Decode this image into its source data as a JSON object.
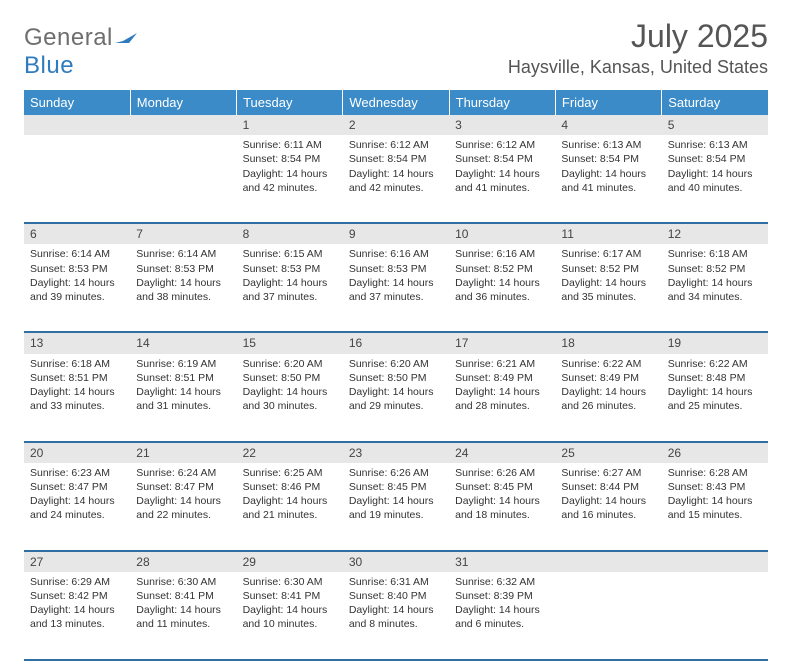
{
  "brand": {
    "general": "General",
    "blue": "Blue"
  },
  "title": "July 2025",
  "location": "Haysville, Kansas, United States",
  "header_bg": "#3b8bc9",
  "border_color": "#2f6fa3",
  "daynum_bg": "#e7e7e7",
  "logo_flag_color": "#2f7bbf",
  "weekdays": [
    "Sunday",
    "Monday",
    "Tuesday",
    "Wednesday",
    "Thursday",
    "Friday",
    "Saturday"
  ],
  "weeks": [
    [
      null,
      null,
      {
        "day": "1",
        "sunrise": "Sunrise: 6:11 AM",
        "sunset": "Sunset: 8:54 PM",
        "daylight": "Daylight: 14 hours and 42 minutes."
      },
      {
        "day": "2",
        "sunrise": "Sunrise: 6:12 AM",
        "sunset": "Sunset: 8:54 PM",
        "daylight": "Daylight: 14 hours and 42 minutes."
      },
      {
        "day": "3",
        "sunrise": "Sunrise: 6:12 AM",
        "sunset": "Sunset: 8:54 PM",
        "daylight": "Daylight: 14 hours and 41 minutes."
      },
      {
        "day": "4",
        "sunrise": "Sunrise: 6:13 AM",
        "sunset": "Sunset: 8:54 PM",
        "daylight": "Daylight: 14 hours and 41 minutes."
      },
      {
        "day": "5",
        "sunrise": "Sunrise: 6:13 AM",
        "sunset": "Sunset: 8:54 PM",
        "daylight": "Daylight: 14 hours and 40 minutes."
      }
    ],
    [
      {
        "day": "6",
        "sunrise": "Sunrise: 6:14 AM",
        "sunset": "Sunset: 8:53 PM",
        "daylight": "Daylight: 14 hours and 39 minutes."
      },
      {
        "day": "7",
        "sunrise": "Sunrise: 6:14 AM",
        "sunset": "Sunset: 8:53 PM",
        "daylight": "Daylight: 14 hours and 38 minutes."
      },
      {
        "day": "8",
        "sunrise": "Sunrise: 6:15 AM",
        "sunset": "Sunset: 8:53 PM",
        "daylight": "Daylight: 14 hours and 37 minutes."
      },
      {
        "day": "9",
        "sunrise": "Sunrise: 6:16 AM",
        "sunset": "Sunset: 8:53 PM",
        "daylight": "Daylight: 14 hours and 37 minutes."
      },
      {
        "day": "10",
        "sunrise": "Sunrise: 6:16 AM",
        "sunset": "Sunset: 8:52 PM",
        "daylight": "Daylight: 14 hours and 36 minutes."
      },
      {
        "day": "11",
        "sunrise": "Sunrise: 6:17 AM",
        "sunset": "Sunset: 8:52 PM",
        "daylight": "Daylight: 14 hours and 35 minutes."
      },
      {
        "day": "12",
        "sunrise": "Sunrise: 6:18 AM",
        "sunset": "Sunset: 8:52 PM",
        "daylight": "Daylight: 14 hours and 34 minutes."
      }
    ],
    [
      {
        "day": "13",
        "sunrise": "Sunrise: 6:18 AM",
        "sunset": "Sunset: 8:51 PM",
        "daylight": "Daylight: 14 hours and 33 minutes."
      },
      {
        "day": "14",
        "sunrise": "Sunrise: 6:19 AM",
        "sunset": "Sunset: 8:51 PM",
        "daylight": "Daylight: 14 hours and 31 minutes."
      },
      {
        "day": "15",
        "sunrise": "Sunrise: 6:20 AM",
        "sunset": "Sunset: 8:50 PM",
        "daylight": "Daylight: 14 hours and 30 minutes."
      },
      {
        "day": "16",
        "sunrise": "Sunrise: 6:20 AM",
        "sunset": "Sunset: 8:50 PM",
        "daylight": "Daylight: 14 hours and 29 minutes."
      },
      {
        "day": "17",
        "sunrise": "Sunrise: 6:21 AM",
        "sunset": "Sunset: 8:49 PM",
        "daylight": "Daylight: 14 hours and 28 minutes."
      },
      {
        "day": "18",
        "sunrise": "Sunrise: 6:22 AM",
        "sunset": "Sunset: 8:49 PM",
        "daylight": "Daylight: 14 hours and 26 minutes."
      },
      {
        "day": "19",
        "sunrise": "Sunrise: 6:22 AM",
        "sunset": "Sunset: 8:48 PM",
        "daylight": "Daylight: 14 hours and 25 minutes."
      }
    ],
    [
      {
        "day": "20",
        "sunrise": "Sunrise: 6:23 AM",
        "sunset": "Sunset: 8:47 PM",
        "daylight": "Daylight: 14 hours and 24 minutes."
      },
      {
        "day": "21",
        "sunrise": "Sunrise: 6:24 AM",
        "sunset": "Sunset: 8:47 PM",
        "daylight": "Daylight: 14 hours and 22 minutes."
      },
      {
        "day": "22",
        "sunrise": "Sunrise: 6:25 AM",
        "sunset": "Sunset: 8:46 PM",
        "daylight": "Daylight: 14 hours and 21 minutes."
      },
      {
        "day": "23",
        "sunrise": "Sunrise: 6:26 AM",
        "sunset": "Sunset: 8:45 PM",
        "daylight": "Daylight: 14 hours and 19 minutes."
      },
      {
        "day": "24",
        "sunrise": "Sunrise: 6:26 AM",
        "sunset": "Sunset: 8:45 PM",
        "daylight": "Daylight: 14 hours and 18 minutes."
      },
      {
        "day": "25",
        "sunrise": "Sunrise: 6:27 AM",
        "sunset": "Sunset: 8:44 PM",
        "daylight": "Daylight: 14 hours and 16 minutes."
      },
      {
        "day": "26",
        "sunrise": "Sunrise: 6:28 AM",
        "sunset": "Sunset: 8:43 PM",
        "daylight": "Daylight: 14 hours and 15 minutes."
      }
    ],
    [
      {
        "day": "27",
        "sunrise": "Sunrise: 6:29 AM",
        "sunset": "Sunset: 8:42 PM",
        "daylight": "Daylight: 14 hours and 13 minutes."
      },
      {
        "day": "28",
        "sunrise": "Sunrise: 6:30 AM",
        "sunset": "Sunset: 8:41 PM",
        "daylight": "Daylight: 14 hours and 11 minutes."
      },
      {
        "day": "29",
        "sunrise": "Sunrise: 6:30 AM",
        "sunset": "Sunset: 8:41 PM",
        "daylight": "Daylight: 14 hours and 10 minutes."
      },
      {
        "day": "30",
        "sunrise": "Sunrise: 6:31 AM",
        "sunset": "Sunset: 8:40 PM",
        "daylight": "Daylight: 14 hours and 8 minutes."
      },
      {
        "day": "31",
        "sunrise": "Sunrise: 6:32 AM",
        "sunset": "Sunset: 8:39 PM",
        "daylight": "Daylight: 14 hours and 6 minutes."
      },
      null,
      null
    ]
  ]
}
